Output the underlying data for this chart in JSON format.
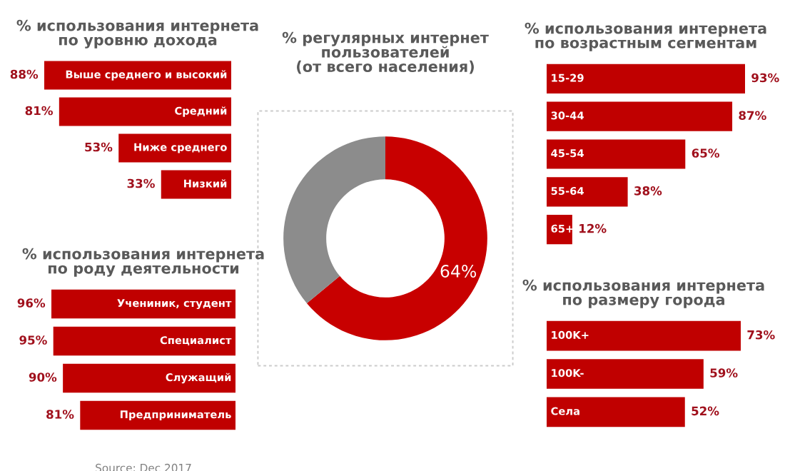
{
  "chart_data": [
    {
      "type": "bar",
      "orientation": "horizontal",
      "title": "% использования интернета\nпо уровню дохода",
      "categories": [
        "Выше среднего и высокий",
        "Средний",
        "Ниже среднего",
        "Низкий"
      ],
      "values": [
        88,
        81,
        53,
        33
      ],
      "value_labels": [
        "88%",
        "81%",
        "53%",
        "33%"
      ],
      "color": "#c00000"
    },
    {
      "type": "donut",
      "title": "% регулярных интернет\nпользователей\n(от всего населения)",
      "categories": [
        null,
        null
      ],
      "values": [
        64,
        36
      ],
      "colors": [
        "#c80000",
        "#8c8c8c"
      ],
      "value_labels": [
        "64%",
        null
      ]
    },
    {
      "type": "bar",
      "orientation": "horizontal",
      "title": "% использования интернета\nпо возрастным сегментам",
      "categories": [
        "15-29",
        "30-44",
        "45-54",
        "55-64",
        "65+"
      ],
      "values": [
        93,
        87,
        65,
        38,
        12
      ],
      "value_labels": [
        "93%",
        "87%",
        "65%",
        "38%",
        "12%"
      ],
      "color": "#c00000"
    },
    {
      "type": "bar",
      "orientation": "horizontal",
      "title": "% использования интернета\nпо роду деятельности",
      "categories": [
        "Учениник, студент",
        "Специалист",
        "Служащий",
        "Предприниматель"
      ],
      "values": [
        96,
        95,
        90,
        81
      ],
      "value_labels": [
        "96%",
        "95%",
        "90%",
        "81%"
      ],
      "color": "#c00000",
      "annotations": [
        "Source: Dec 2017"
      ]
    },
    {
      "type": "bar",
      "orientation": "horizontal",
      "title": "% использования интернета\nпо размеру города",
      "categories": [
        "100K+",
        "100K-",
        "Села"
      ],
      "values": [
        73,
        59,
        52
      ],
      "value_labels": [
        "73%",
        "59%",
        "52%"
      ],
      "color": "#c00000"
    }
  ]
}
